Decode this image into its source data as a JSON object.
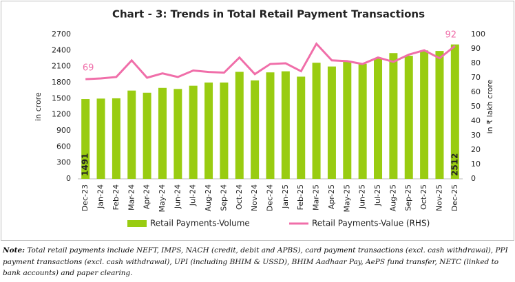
{
  "chart_data": {
    "type": "bar_line",
    "title": "Chart - 3: Trends in Total Retail Payment Transactions",
    "categories": [
      "Dec-23",
      "Jan-24",
      "Feb-24",
      "Mar-24",
      "Apr-24",
      "May-24",
      "Jun-24",
      "Jul-24",
      "Aug-24",
      "Sep-24",
      "Oct-24",
      "Nov-24",
      "Dec-24",
      "Jan-25",
      "Feb-25",
      "Mar-25",
      "Apr-25",
      "May-25",
      "Jun-25",
      "Jul-25",
      "Aug-25",
      "Sep-25",
      "Oct-25",
      "Nov-25",
      "Dec-25"
    ],
    "series": [
      {
        "name": "Retail Payments-Volume",
        "type": "bar",
        "color": "#99cc11",
        "values": [
          1491,
          1500,
          1505,
          1650,
          1610,
          1700,
          1680,
          1740,
          1800,
          1800,
          2000,
          1840,
          1990,
          2010,
          1910,
          2170,
          2100,
          2190,
          2150,
          2250,
          2350,
          2300,
          2400,
          2390,
          2512
        ]
      },
      {
        "name": "Retail Payments-Value (RHS)",
        "type": "line",
        "axis": "y2",
        "color": "#f06ea9",
        "values": [
          69,
          69.5,
          70.5,
          82,
          70,
          73,
          70.5,
          75,
          74,
          73.5,
          84,
          72.5,
          79.5,
          80,
          74.5,
          93.5,
          82,
          81.5,
          79.5,
          84,
          81,
          86,
          89,
          83.5,
          92
        ]
      }
    ],
    "y_label": "in crore",
    "y2_label": "in ₹ lakh crore",
    "ylim": [
      0,
      2700
    ],
    "yticks": [
      0,
      300,
      600,
      900,
      1200,
      1500,
      1800,
      2100,
      2400,
      2700
    ],
    "y2lim": [
      0,
      100
    ],
    "y2ticks": [
      0,
      10,
      20,
      30,
      40,
      50,
      60,
      70,
      80,
      90,
      100
    ],
    "grid": false,
    "legend": "bottom"
  },
  "note": {
    "label": "Note:",
    "text": "Total retail payments include NEFT, IMPS, NACH (credit, debit and APBS), card payment transactions (excl. cash withdrawal), PPI payment transactions (excl. cash withdrawal), UPI (including BHIM & USSD), BHIM Aadhaar Pay, AePS fund transfer, NETC (linked to bank accounts) and paper clearing."
  }
}
